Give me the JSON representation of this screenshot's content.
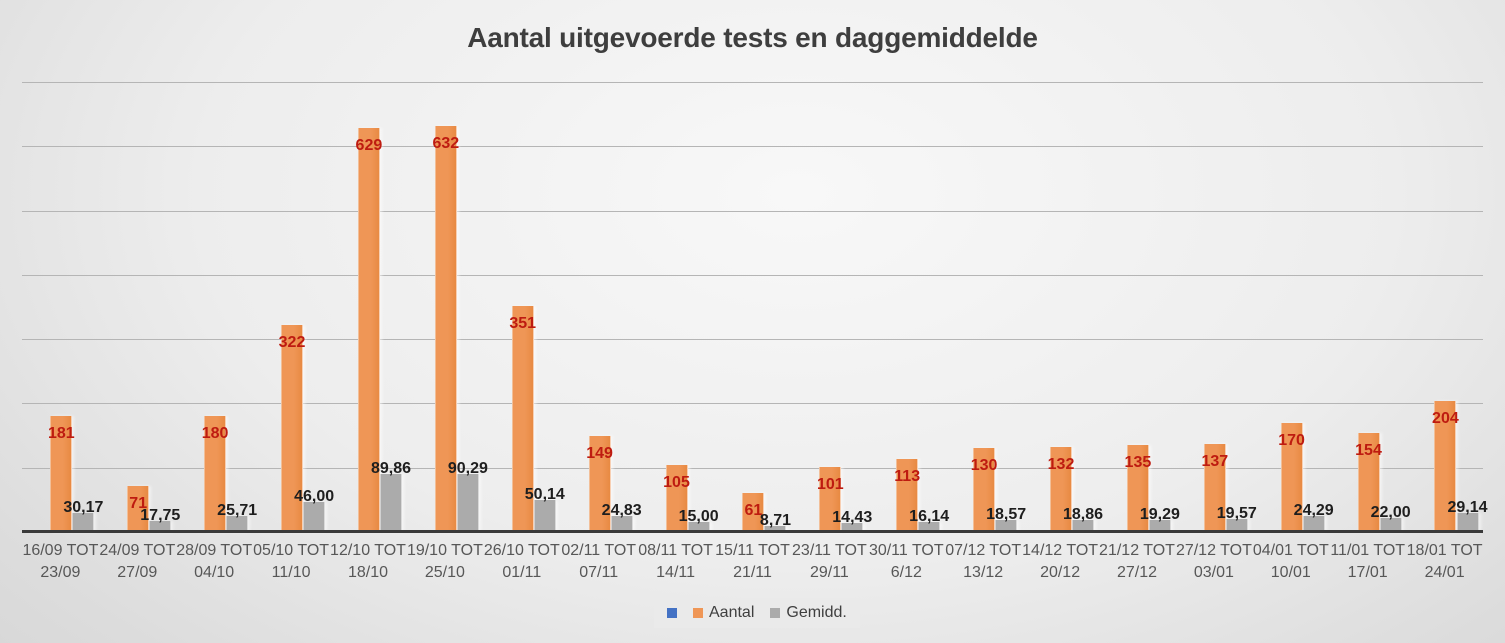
{
  "title": "Aantal uitgevoerde tests en daggemiddelde",
  "chart_data": {
    "type": "bar",
    "title": "Aantal uitgevoerde tests en daggemiddelde",
    "categories": [
      "16/09 TOT 23/09",
      "24/09 TOT 27/09",
      "28/09 TOT 04/10",
      "05/10 TOT 11/10",
      "12/10 TOT 18/10",
      "19/10 TOT 25/10",
      "26/10 TOT 01/11",
      "02/11 TOT 07/11",
      "08/11 TOT 14/11",
      "15/11 TOT 21/11",
      "23/11 TOT 29/11",
      "30/11 TOT 6/12",
      "07/12 TOT 13/12",
      "14/12 TOT 20/12",
      "21/12 TOT 27/12",
      "27/12 TOT 03/01",
      "04/01 TOT 10/01",
      "11/01 TOT 17/01",
      "18/01 TOT 24/01"
    ],
    "series": [
      {
        "name": "",
        "color": "#4472C4",
        "values": []
      },
      {
        "name": "Aantal",
        "color": "#EF9656",
        "label_color": "#BE1B10",
        "values": [
          181,
          71,
          180,
          322,
          629,
          632,
          351,
          149,
          105,
          61,
          101,
          113,
          130,
          132,
          135,
          137,
          170,
          154,
          204
        ],
        "labels": [
          "181",
          "71",
          "180",
          "322",
          "629",
          "632",
          "351",
          "149",
          "105",
          "61",
          "101",
          "113",
          "130",
          "132",
          "135",
          "137",
          "170",
          "154",
          "204"
        ]
      },
      {
        "name": "Gemidd.",
        "color": "#ABABAB",
        "label_color": "#1E1E1E",
        "values": [
          30.17,
          17.75,
          25.71,
          46.0,
          89.86,
          90.29,
          50.14,
          24.83,
          15.0,
          8.71,
          14.43,
          16.14,
          18.57,
          18.86,
          19.29,
          19.57,
          24.29,
          22.0,
          29.14
        ],
        "labels": [
          "30,17",
          "17,75",
          "25,71",
          "46,00",
          "89,86",
          "90,29",
          "50,14",
          "24,83",
          "15,00",
          "8,71",
          "14,43",
          "16,14",
          "18,57",
          "18,86",
          "19,29",
          "19,57",
          "24,29",
          "22,00",
          "29,14"
        ]
      }
    ],
    "xlabel": "",
    "ylabel": "",
    "ylim": [
      0,
      733
    ],
    "grid_step": 100,
    "gridlines_visible": true,
    "y_tick_labels_visible": false,
    "legend_position": "bottom"
  },
  "colors": {
    "title_text": "#3E3E3E",
    "gridline": "#B5B5B5",
    "axis": "#3A3A3A",
    "x_label_text": "#575757",
    "legend_text": "#3F3F3F",
    "legend_background": "#EAEAEA",
    "aantal_bar": "#EF9656",
    "aantal_label": "#BE1B10",
    "gemiddeld_bar": "#ABABAB",
    "gemiddeld_label": "#1E1E1E",
    "hidden_series_swatch": "#4472C4"
  }
}
